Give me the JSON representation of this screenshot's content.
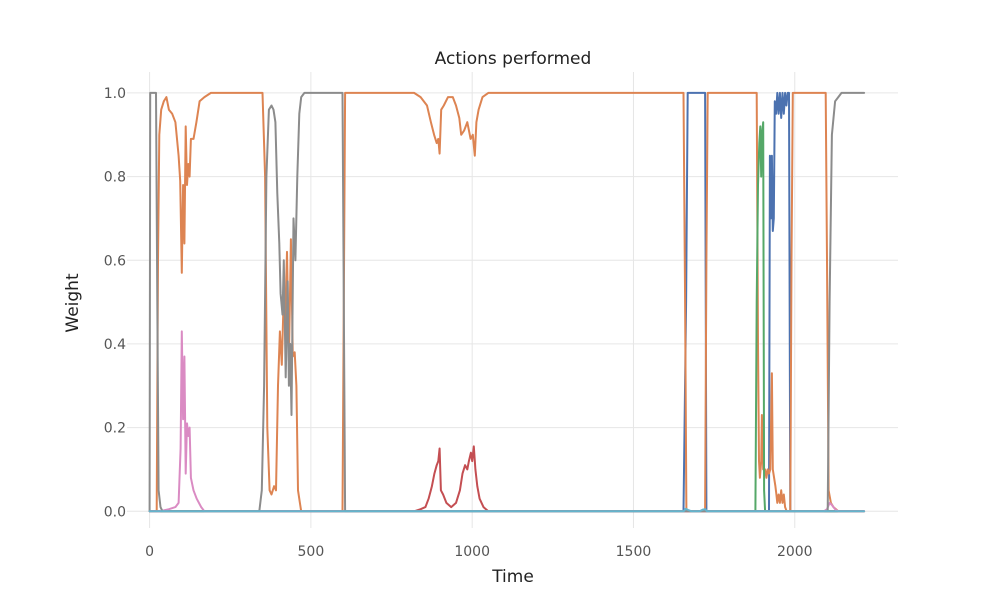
{
  "chart_data": {
    "type": "line",
    "title": "Actions performed",
    "xlabel": "Time",
    "ylabel": "Weight",
    "xlim": [
      -70,
      2320
    ],
    "ylim": [
      -0.04,
      1.05
    ],
    "xticks": [
      0,
      500,
      1000,
      1500,
      2000
    ],
    "yticks": [
      0.0,
      0.2,
      0.4,
      0.6,
      0.8,
      1.0
    ],
    "ytick_labels": [
      "0.0",
      "0.2",
      "0.4",
      "0.6",
      "0.8",
      "1.0"
    ],
    "grid": true,
    "legend": "none",
    "series": [
      {
        "color": "#4C72B0",
        "points": [
          [
            0,
            0
          ],
          [
            1655,
            0
          ],
          [
            1663,
            0.5
          ],
          [
            1668,
            1.0
          ],
          [
            1722,
            1.0
          ],
          [
            1726,
            0
          ],
          [
            1920,
            0
          ],
          [
            1923,
            0.85
          ],
          [
            1926,
            0.7
          ],
          [
            1929,
            0.85
          ],
          [
            1932,
            0.67
          ],
          [
            1935,
            0.7
          ],
          [
            1938,
            0.98
          ],
          [
            1942,
            0.95
          ],
          [
            1946,
            1.0
          ],
          [
            1950,
            0.95
          ],
          [
            1954,
            1.0
          ],
          [
            1958,
            0.94
          ],
          [
            1962,
            1.0
          ],
          [
            1966,
            0.95
          ],
          [
            1970,
            1.0
          ],
          [
            1974,
            0.97
          ],
          [
            1978,
            1.0
          ],
          [
            1982,
            1.0
          ],
          [
            1986,
            0
          ],
          [
            2215,
            0
          ]
        ]
      },
      {
        "color": "#DD8452",
        "points": [
          [
            0,
            0
          ],
          [
            22,
            0
          ],
          [
            26,
            0.6
          ],
          [
            30,
            0.9
          ],
          [
            36,
            0.96
          ],
          [
            44,
            0.98
          ],
          [
            52,
            0.99
          ],
          [
            60,
            0.96
          ],
          [
            70,
            0.95
          ],
          [
            80,
            0.93
          ],
          [
            90,
            0.85
          ],
          [
            95,
            0.79
          ],
          [
            100,
            0.57
          ],
          [
            104,
            0.78
          ],
          [
            108,
            0.64
          ],
          [
            112,
            0.92
          ],
          [
            116,
            0.78
          ],
          [
            120,
            0.83
          ],
          [
            124,
            0.8
          ],
          [
            128,
            0.89
          ],
          [
            136,
            0.89
          ],
          [
            145,
            0.93
          ],
          [
            155,
            0.98
          ],
          [
            170,
            0.99
          ],
          [
            190,
            1.0
          ],
          [
            350,
            1.0
          ],
          [
            358,
            0.8
          ],
          [
            365,
            0.2
          ],
          [
            372,
            0.05
          ],
          [
            378,
            0.04
          ],
          [
            386,
            0.06
          ],
          [
            392,
            0.05
          ],
          [
            398,
            0.3
          ],
          [
            404,
            0.43
          ],
          [
            410,
            0.35
          ],
          [
            416,
            0.52
          ],
          [
            420,
            0.45
          ],
          [
            426,
            0.62
          ],
          [
            432,
            0.36
          ],
          [
            438,
            0.65
          ],
          [
            444,
            0.37
          ],
          [
            450,
            0.38
          ],
          [
            455,
            0.3
          ],
          [
            460,
            0.05
          ],
          [
            466,
            0.02
          ],
          [
            470,
            0
          ],
          [
            598,
            0
          ],
          [
            602,
            0.5
          ],
          [
            606,
            1.0
          ],
          [
            820,
            1.0
          ],
          [
            840,
            0.99
          ],
          [
            860,
            0.97
          ],
          [
            872,
            0.93
          ],
          [
            882,
            0.9
          ],
          [
            890,
            0.88
          ],
          [
            895,
            0.89
          ],
          [
            899,
            0.855
          ],
          [
            904,
            0.96
          ],
          [
            912,
            0.97
          ],
          [
            925,
            0.99
          ],
          [
            940,
            0.99
          ],
          [
            950,
            0.97
          ],
          [
            960,
            0.94
          ],
          [
            966,
            0.9
          ],
          [
            975,
            0.91
          ],
          [
            985,
            0.93
          ],
          [
            995,
            0.89
          ],
          [
            1002,
            0.9
          ],
          [
            1008,
            0.85
          ],
          [
            1013,
            0.93
          ],
          [
            1020,
            0.96
          ],
          [
            1032,
            0.99
          ],
          [
            1050,
            1.0
          ],
          [
            1655,
            1.0
          ],
          [
            1660,
            0.5
          ],
          [
            1664,
            0
          ],
          [
            1722,
            0
          ],
          [
            1726,
            0.6
          ],
          [
            1730,
            1.0
          ],
          [
            1882,
            1.0
          ],
          [
            1886,
            0.4
          ],
          [
            1889,
            0.12
          ],
          [
            1892,
            0.08
          ],
          [
            1896,
            0.12
          ],
          [
            1898,
            0.23
          ],
          [
            1902,
            0.1
          ],
          [
            1908,
            0.1
          ],
          [
            1912,
            0.08
          ],
          [
            1916,
            0.1
          ],
          [
            1920,
            0.09
          ],
          [
            1924,
            0.1
          ],
          [
            1929,
            0.33
          ],
          [
            1932,
            0.1
          ],
          [
            1936,
            0.08
          ],
          [
            1940,
            0.06
          ],
          [
            1943,
            0.04
          ],
          [
            1946,
            0.02
          ],
          [
            1950,
            0.04
          ],
          [
            1954,
            0.02
          ],
          [
            1958,
            0.05
          ],
          [
            1962,
            0.02
          ],
          [
            1966,
            0.04
          ],
          [
            1970,
            0.01
          ],
          [
            1975,
            0
          ],
          [
            1986,
            0
          ],
          [
            1990,
            0.6
          ],
          [
            1994,
            1.0
          ],
          [
            2096,
            1.0
          ],
          [
            2100,
            0.6
          ],
          [
            2105,
            0.05
          ],
          [
            2112,
            0.02
          ],
          [
            2120,
            0.01
          ],
          [
            2135,
            0
          ],
          [
            2215,
            0
          ]
        ]
      },
      {
        "color": "#55A868",
        "points": [
          [
            0,
            0
          ],
          [
            1878,
            0
          ],
          [
            1882,
            0.5
          ],
          [
            1886,
            0.78
          ],
          [
            1890,
            0.88
          ],
          [
            1893,
            0.92
          ],
          [
            1896,
            0.8
          ],
          [
            1898,
            0.9
          ],
          [
            1902,
            0.93
          ],
          [
            1905,
            0.05
          ],
          [
            1908,
            0
          ],
          [
            2215,
            0
          ]
        ]
      },
      {
        "color": "#C44E52",
        "points": [
          [
            0,
            0
          ],
          [
            820,
            0
          ],
          [
            840,
            0.005
          ],
          [
            855,
            0.01
          ],
          [
            865,
            0.03
          ],
          [
            875,
            0.06
          ],
          [
            883,
            0.09
          ],
          [
            890,
            0.11
          ],
          [
            895,
            0.12
          ],
          [
            899,
            0.15
          ],
          [
            903,
            0.05
          ],
          [
            910,
            0.04
          ],
          [
            920,
            0.02
          ],
          [
            935,
            0.01
          ],
          [
            950,
            0.02
          ],
          [
            962,
            0.05
          ],
          [
            970,
            0.09
          ],
          [
            978,
            0.11
          ],
          [
            985,
            0.1
          ],
          [
            990,
            0.12
          ],
          [
            996,
            0.14
          ],
          [
            1000,
            0.12
          ],
          [
            1005,
            0.155
          ],
          [
            1010,
            0.1
          ],
          [
            1016,
            0.06
          ],
          [
            1023,
            0.03
          ],
          [
            1035,
            0.01
          ],
          [
            1050,
            0
          ],
          [
            2215,
            0
          ]
        ]
      },
      {
        "color": "#DA8BC3",
        "points": [
          [
            0,
            0
          ],
          [
            30,
            0
          ],
          [
            60,
            0.005
          ],
          [
            80,
            0.01
          ],
          [
            90,
            0.02
          ],
          [
            96,
            0.15
          ],
          [
            100,
            0.43
          ],
          [
            104,
            0.22
          ],
          [
            108,
            0.37
          ],
          [
            112,
            0.09
          ],
          [
            116,
            0.21
          ],
          [
            120,
            0.18
          ],
          [
            124,
            0.2
          ],
          [
            128,
            0.08
          ],
          [
            136,
            0.05
          ],
          [
            146,
            0.03
          ],
          [
            160,
            0.01
          ],
          [
            170,
            0
          ],
          [
            2090,
            0
          ],
          [
            2100,
            0.005
          ],
          [
            2108,
            0.02
          ],
          [
            2115,
            0.015
          ],
          [
            2125,
            0.005
          ],
          [
            2135,
            0
          ],
          [
            2215,
            0
          ]
        ]
      },
      {
        "color": "#8C8C8C",
        "points": [
          [
            0,
            0
          ],
          [
            2,
            1.0
          ],
          [
            20,
            1.0
          ],
          [
            24,
            0.5
          ],
          [
            28,
            0.05
          ],
          [
            34,
            0.01
          ],
          [
            40,
            0
          ],
          [
            340,
            0
          ],
          [
            348,
            0.05
          ],
          [
            355,
            0.3
          ],
          [
            362,
            0.8
          ],
          [
            370,
            0.96
          ],
          [
            378,
            0.97
          ],
          [
            384,
            0.96
          ],
          [
            390,
            0.93
          ],
          [
            396,
            0.76
          ],
          [
            402,
            0.64
          ],
          [
            406,
            0.52
          ],
          [
            412,
            0.47
          ],
          [
            416,
            0.6
          ],
          [
            422,
            0.32
          ],
          [
            428,
            0.55
          ],
          [
            432,
            0.3
          ],
          [
            436,
            0.4
          ],
          [
            440,
            0.23
          ],
          [
            446,
            0.7
          ],
          [
            452,
            0.6
          ],
          [
            458,
            0.8
          ],
          [
            464,
            0.95
          ],
          [
            470,
            0.99
          ],
          [
            480,
            1.0
          ],
          [
            598,
            1.0
          ],
          [
            602,
            0.5
          ],
          [
            606,
            0
          ],
          [
            2102,
            0
          ],
          [
            2108,
            0.5
          ],
          [
            2115,
            0.9
          ],
          [
            2125,
            0.98
          ],
          [
            2135,
            0.99
          ],
          [
            2145,
            1.0
          ],
          [
            2215,
            1.0
          ]
        ]
      },
      {
        "color": "#64B5CD",
        "points": [
          [
            0,
            0
          ],
          [
            1655,
            0
          ],
          [
            1662,
            0.006
          ],
          [
            1670,
            0.003
          ],
          [
            1680,
            0
          ],
          [
            1705,
            0
          ],
          [
            1715,
            0.004
          ],
          [
            1722,
            0.005
          ],
          [
            1728,
            0
          ],
          [
            2215,
            0
          ]
        ]
      }
    ]
  }
}
